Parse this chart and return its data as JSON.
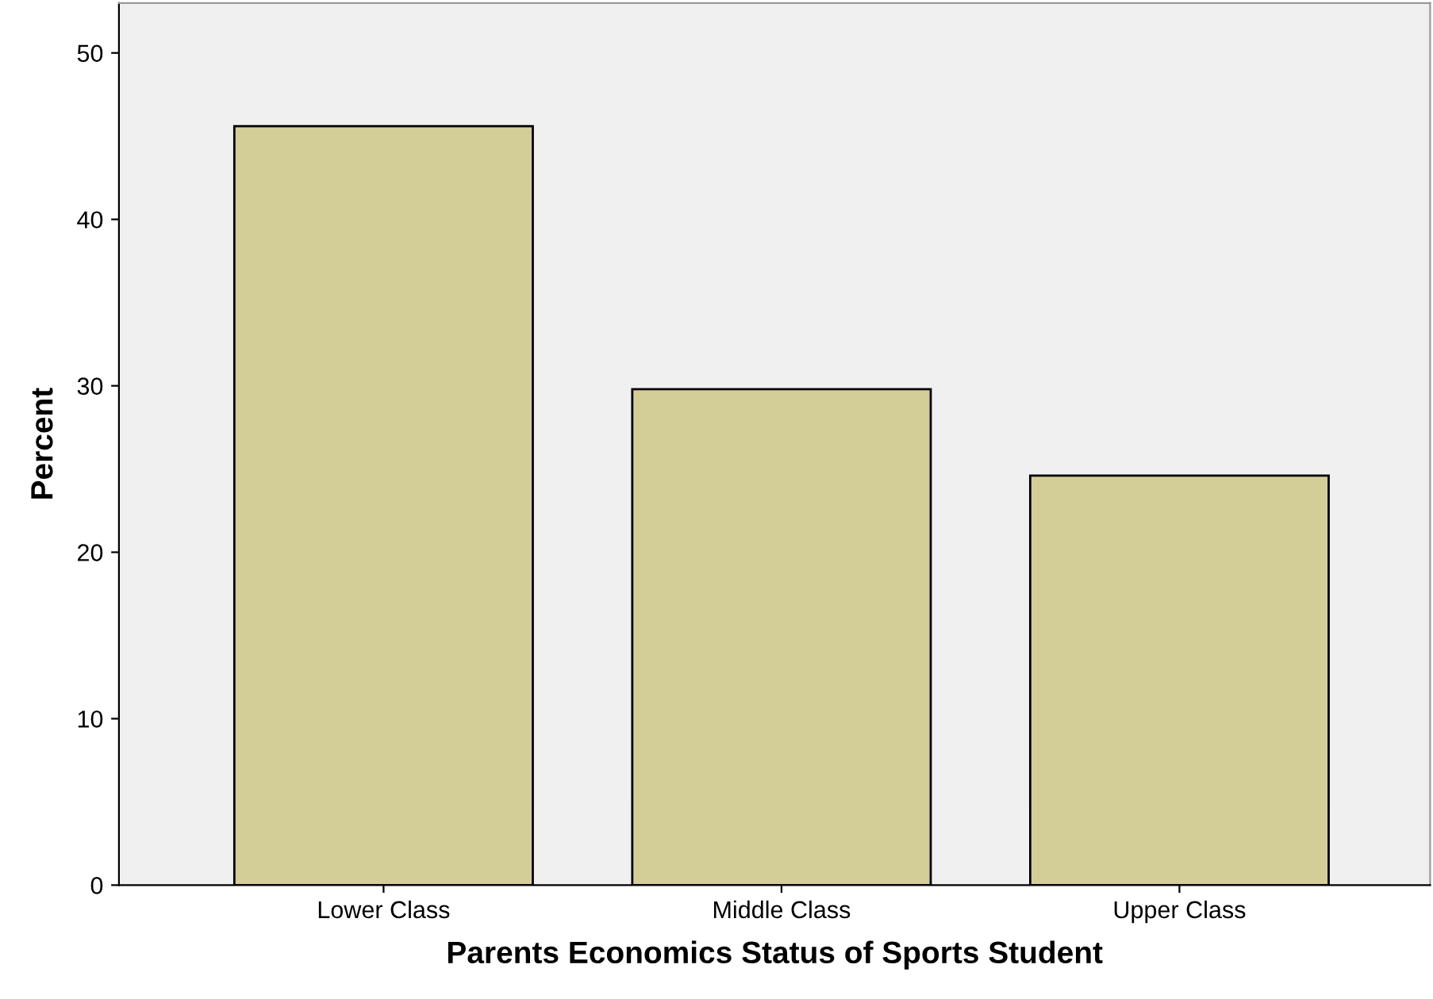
{
  "chart_data": {
    "type": "bar",
    "xlabel": "Parents Economics Status of Sports Student",
    "ylabel": "Percent",
    "categories": [
      "Lower Class",
      "Middle Class",
      "Upper Class"
    ],
    "values": [
      45.6,
      29.8,
      24.6
    ],
    "color": "#d3ce97",
    "ylim": [
      0,
      53
    ],
    "yticks": [
      0,
      10,
      20,
      30,
      40,
      50
    ],
    "grid": false
  }
}
